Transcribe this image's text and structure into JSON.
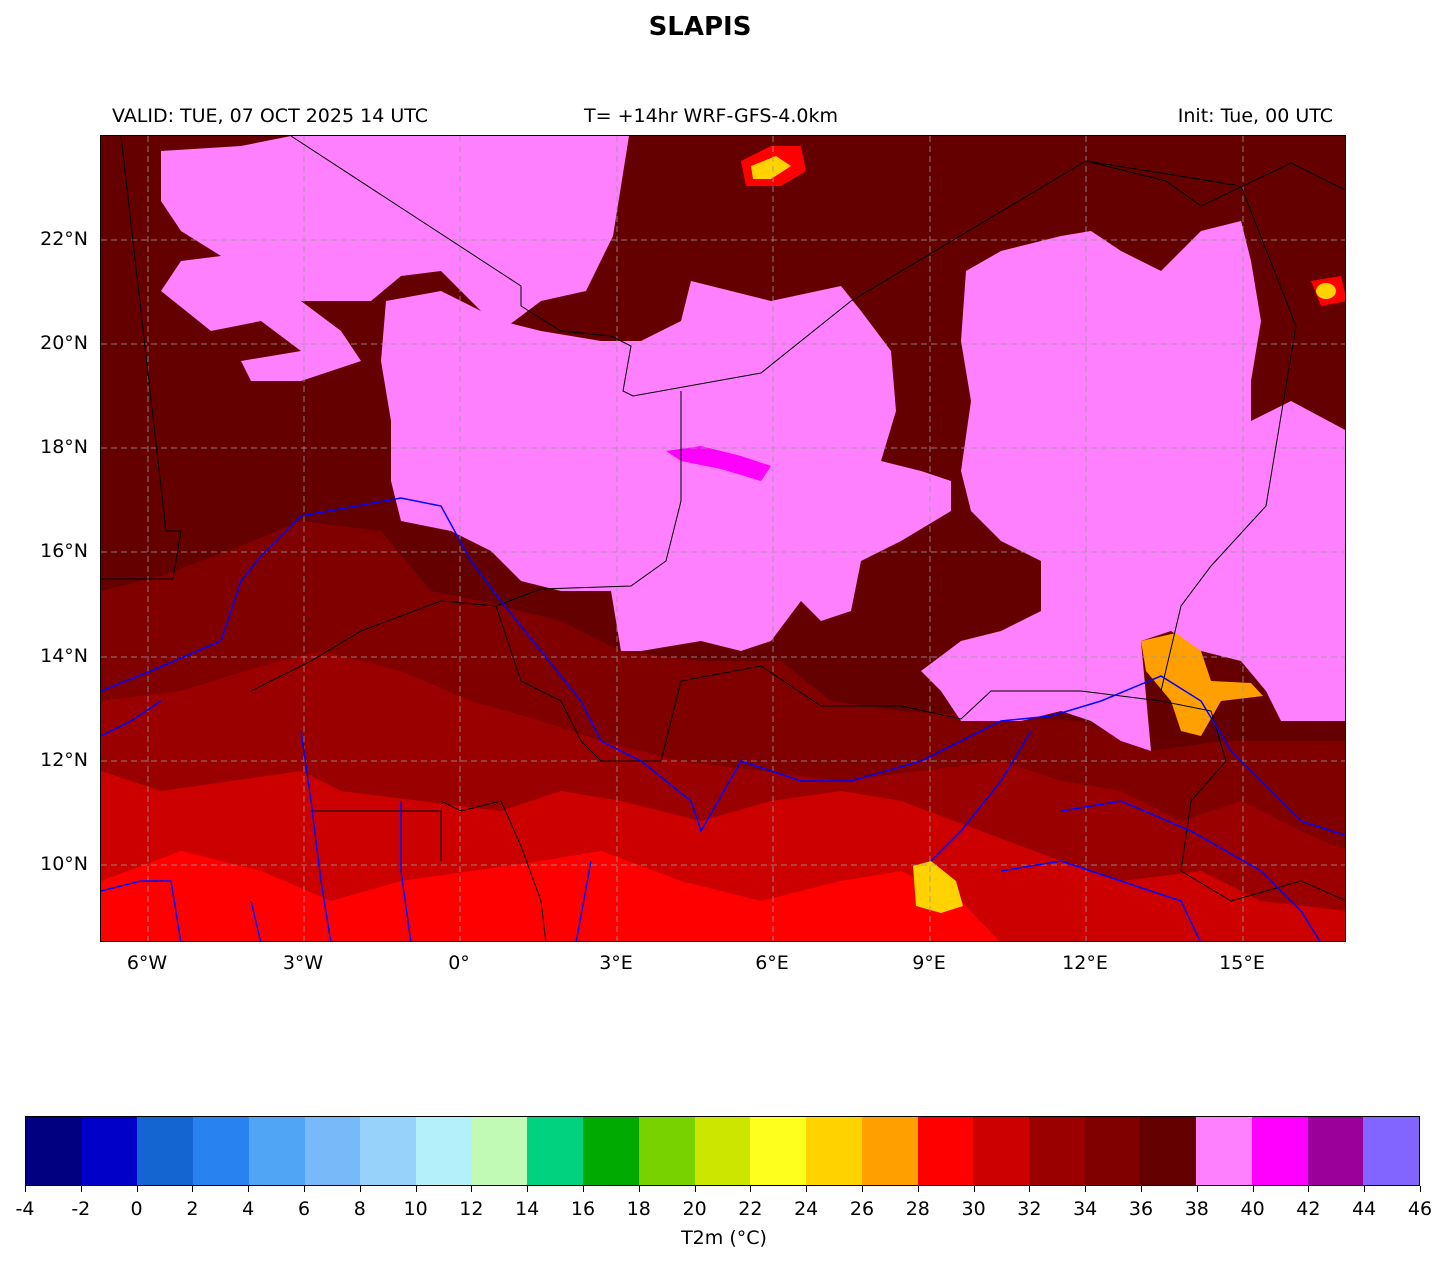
{
  "title": "SLAPIS",
  "header": {
    "valid": "VALID: TUE, 07 OCT 2025 14 UTC",
    "forecast": "T= +14hr WRF-GFS-4.0km",
    "init": "Init: Tue, 00 UTC"
  },
  "map": {
    "variable": "2 m temperature",
    "lon_labels": [
      "6°W",
      "3°W",
      "0°",
      "3°E",
      "6°E",
      "9°E",
      "12°E",
      "15°E"
    ],
    "lat_labels": [
      "22°N",
      "20°N",
      "18°N",
      "16°N",
      "14°N",
      "12°N",
      "10°N"
    ],
    "colors": {
      "river": "#0000ff",
      "border": "#000000",
      "grid": "#999999"
    }
  },
  "colorbar": {
    "label": "T2m (°C)",
    "ticks": [
      "-4",
      "-2",
      "0",
      "2",
      "4",
      "6",
      "8",
      "10",
      "12",
      "14",
      "16",
      "18",
      "20",
      "22",
      "24",
      "26",
      "28",
      "30",
      "32",
      "34",
      "36",
      "38",
      "40",
      "42",
      "44",
      "46"
    ],
    "colors": [
      "#000080",
      "#0000c8",
      "#1464d2",
      "#2882f0",
      "#50a5f5",
      "#78b9fa",
      "#96d2fa",
      "#b4f0fa",
      "#c0fab4",
      "#00d280",
      "#00aa00",
      "#78d200",
      "#cde600",
      "#ffff1e",
      "#ffd200",
      "#ffa000",
      "#ff0000",
      "#cd0000",
      "#9b0000",
      "#800000",
      "#640000",
      "#ff80ff",
      "#ff00ff",
      "#9b009b",
      "#8264ff"
    ]
  }
}
